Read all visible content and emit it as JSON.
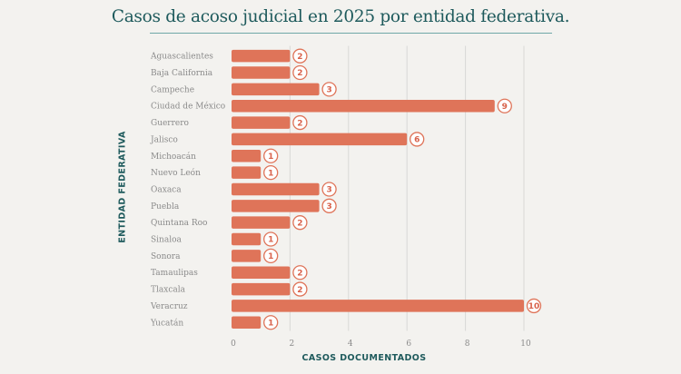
{
  "chart_data": {
    "type": "bar",
    "orientation": "horizontal",
    "title": "Casos de acoso judicial en 2025 por entidad federativa.",
    "xlabel": "CASOS DOCUMENTADOS",
    "ylabel": "ENTIDAD FEDERATIVA",
    "categories": [
      "Aguascalientes",
      "Baja California",
      "Campeche",
      "Ciudad de México",
      "Guerrero",
      "Jalisco",
      "Michoacán",
      "Nuevo León",
      "Oaxaca",
      "Puebla",
      "Quintana Roo",
      "Sinaloa",
      "Sonora",
      "Tamaulipas",
      "Tlaxcala",
      "Veracruz",
      "Yucatán"
    ],
    "values": [
      2,
      2,
      3,
      9,
      2,
      6,
      1,
      1,
      3,
      3,
      2,
      1,
      1,
      2,
      2,
      10,
      1
    ],
    "xlim": [
      0,
      10
    ],
    "xticks": [
      0,
      2,
      4,
      6,
      8,
      10
    ],
    "grid": true,
    "colors": {
      "bar": "#df7459",
      "title": "#1e5a5c",
      "background": "#f3f2ef"
    }
  }
}
